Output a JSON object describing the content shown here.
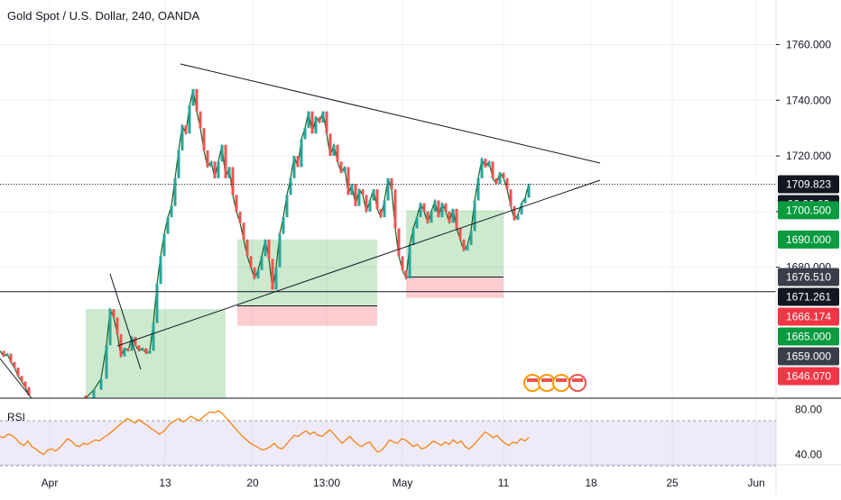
{
  "chart_data": {
    "type": "candlestick",
    "title": "Gold Spot / U.S. Dollar, 240, OANDA",
    "colors": {
      "up": "#26a69a",
      "down": "#ef5350",
      "text": "#131722",
      "grid": "#eef0f3",
      "rsi": "#f57c00"
    },
    "price_axis": {
      "ylim": [
        1633,
        1776
      ],
      "ticks": [
        1760,
        1740,
        1720,
        1700,
        1680
      ],
      "tick_labels": [
        "1760.000",
        "1740.000",
        "1720.000",
        "1700.000",
        "1680.000"
      ]
    },
    "time_axis": {
      "tick_labels": [
        "Apr",
        "13",
        "20",
        "13:00",
        "May",
        "11",
        "18",
        "25",
        "Jun"
      ]
    },
    "current_price": 1709.823,
    "countdown": "02:00:03",
    "price_labels": [
      {
        "value": 1709.823,
        "text": "1709.823",
        "bg": "#131722",
        "fg": "#ffffff"
      },
      {
        "value": 1700.5,
        "text": "1700.500",
        "bg": "#089b3f",
        "fg": "#ffffff"
      },
      {
        "value": 1690.0,
        "text": "1690.000",
        "bg": "#089b3f",
        "fg": "#ffffff"
      },
      {
        "value": 1676.51,
        "text": "1676.510",
        "bg": "#3a3e4a",
        "fg": "#ffffff"
      },
      {
        "value": 1671.261,
        "text": "1671.261",
        "bg": "#131722",
        "fg": "#ffffff"
      },
      {
        "value": 1666.174,
        "text": "1666.174",
        "bg": "#f23645",
        "fg": "#ffffff"
      },
      {
        "value": 1665.0,
        "text": "1665.000",
        "bg": "#089b3f",
        "fg": "#ffffff"
      },
      {
        "value": 1659.0,
        "text": "1659.000",
        "bg": "#3a3e4a",
        "fg": "#ffffff"
      },
      {
        "value": 1646.07,
        "text": "1646.070",
        "bg": "#f23645",
        "fg": "#ffffff"
      }
    ],
    "horizontal_lines": [
      1709.823,
      1671.261
    ],
    "series": [
      {
        "name": "XAUUSD",
        "points": [
          [
            0,
            1650
          ],
          [
            4,
            1648
          ],
          [
            8,
            1649
          ],
          [
            12,
            1646
          ],
          [
            16,
            1644
          ],
          [
            20,
            1641
          ],
          [
            24,
            1639
          ],
          [
            28,
            1637
          ],
          [
            32,
            1634
          ],
          [
            95,
            1633
          ],
          [
            104,
            1636
          ],
          [
            112,
            1640
          ],
          [
            118,
            1652
          ],
          [
            122,
            1665
          ],
          [
            126,
            1662
          ],
          [
            130,
            1656
          ],
          [
            134,
            1648
          ],
          [
            138,
            1651
          ],
          [
            142,
            1650
          ],
          [
            146,
            1655
          ],
          [
            150,
            1652
          ],
          [
            154,
            1650
          ],
          [
            158,
            1651
          ],
          [
            162,
            1649
          ],
          [
            166,
            1650
          ],
          [
            170,
            1660
          ],
          [
            174,
            1674
          ],
          [
            178,
            1684
          ],
          [
            182,
            1692
          ],
          [
            186,
            1698
          ],
          [
            190,
            1702
          ],
          [
            194,
            1712
          ],
          [
            198,
            1722
          ],
          [
            202,
            1731
          ],
          [
            206,
            1728
          ],
          [
            210,
            1738
          ],
          [
            214,
            1744
          ],
          [
            218,
            1736
          ],
          [
            222,
            1730
          ],
          [
            226,
            1722
          ],
          [
            230,
            1716
          ],
          [
            234,
            1718
          ],
          [
            238,
            1712
          ],
          [
            242,
            1718
          ],
          [
            246,
            1724
          ],
          [
            250,
            1712
          ],
          [
            254,
            1716
          ],
          [
            258,
            1706
          ],
          [
            262,
            1700
          ],
          [
            266,
            1696
          ],
          [
            270,
            1690
          ],
          [
            274,
            1684
          ],
          [
            278,
            1680
          ],
          [
            282,
            1676
          ],
          [
            286,
            1679
          ],
          [
            290,
            1684
          ],
          [
            294,
            1690
          ],
          [
            298,
            1683
          ],
          [
            302,
            1672
          ],
          [
            306,
            1680
          ],
          [
            310,
            1692
          ],
          [
            314,
            1698
          ],
          [
            318,
            1706
          ],
          [
            322,
            1712
          ],
          [
            326,
            1720
          ],
          [
            330,
            1716
          ],
          [
            334,
            1726
          ],
          [
            338,
            1730
          ],
          [
            342,
            1736
          ],
          [
            346,
            1728
          ],
          [
            350,
            1734
          ],
          [
            354,
            1732
          ],
          [
            358,
            1736
          ],
          [
            362,
            1728
          ],
          [
            366,
            1720
          ],
          [
            370,
            1724
          ],
          [
            374,
            1718
          ],
          [
            378,
            1714
          ],
          [
            382,
            1716
          ],
          [
            386,
            1706
          ],
          [
            390,
            1710
          ],
          [
            394,
            1702
          ],
          [
            398,
            1708
          ],
          [
            402,
            1706
          ],
          [
            406,
            1700
          ],
          [
            410,
            1704
          ],
          [
            414,
            1708
          ],
          [
            418,
            1701
          ],
          [
            422,
            1698
          ],
          [
            426,
            1704
          ],
          [
            430,
            1712
          ],
          [
            434,
            1708
          ],
          [
            438,
            1694
          ],
          [
            442,
            1684
          ],
          [
            446,
            1679
          ],
          [
            450,
            1676
          ],
          [
            454,
            1688
          ],
          [
            458,
            1694
          ],
          [
            462,
            1698
          ],
          [
            466,
            1703
          ],
          [
            470,
            1700
          ],
          [
            474,
            1696
          ],
          [
            478,
            1700
          ],
          [
            482,
            1704
          ],
          [
            486,
            1698
          ],
          [
            490,
            1703
          ],
          [
            494,
            1700
          ],
          [
            498,
            1696
          ],
          [
            502,
            1701
          ],
          [
            506,
            1694
          ],
          [
            510,
            1690
          ],
          [
            514,
            1686
          ],
          [
            518,
            1688
          ],
          [
            522,
            1693
          ],
          [
            526,
            1704
          ],
          [
            530,
            1712
          ],
          [
            534,
            1719
          ],
          [
            538,
            1716
          ],
          [
            542,
            1718
          ],
          [
            546,
            1712
          ],
          [
            550,
            1710
          ],
          [
            554,
            1714
          ],
          [
            558,
            1712
          ],
          [
            562,
            1708
          ],
          [
            566,
            1702
          ],
          [
            570,
            1697
          ],
          [
            574,
            1699
          ],
          [
            578,
            1703
          ],
          [
            582,
            1705
          ],
          [
            586,
            1710
          ]
        ]
      }
    ],
    "rsi": {
      "label": "RSI",
      "ylim": [
        34,
        86
      ],
      "ticks": [
        80,
        40
      ],
      "tick_labels": [
        "80.00",
        "40.00"
      ],
      "overbought": 70,
      "oversold": 30,
      "values": [
        56,
        55,
        58,
        57,
        54,
        50,
        48,
        52,
        47,
        45,
        42,
        40,
        44,
        45,
        43,
        46,
        50,
        54,
        52,
        48,
        47,
        50,
        49,
        51,
        53,
        52,
        55,
        57,
        60,
        63,
        66,
        69,
        72,
        70,
        68,
        71,
        68,
        66,
        63,
        61,
        58,
        60,
        64,
        68,
        70,
        72,
        69,
        71,
        74,
        72,
        70,
        73,
        76,
        78,
        77,
        79,
        76,
        72,
        68,
        64,
        60,
        56,
        53,
        50,
        48,
        46,
        44,
        45,
        47,
        50,
        46,
        45,
        49,
        53,
        57,
        56,
        59,
        61,
        58,
        60,
        57,
        56,
        59,
        62,
        58,
        54,
        50,
        53,
        56,
        52,
        49,
        47,
        50,
        51,
        46,
        42,
        44,
        48,
        53,
        51,
        50,
        54,
        53,
        50,
        47,
        49,
        45,
        46,
        49,
        52,
        50,
        48,
        51,
        49,
        53,
        50,
        52,
        47,
        45,
        48,
        52,
        56,
        60,
        58,
        55,
        57,
        53,
        50,
        48,
        51,
        50,
        54,
        52,
        55
      ]
    }
  }
}
